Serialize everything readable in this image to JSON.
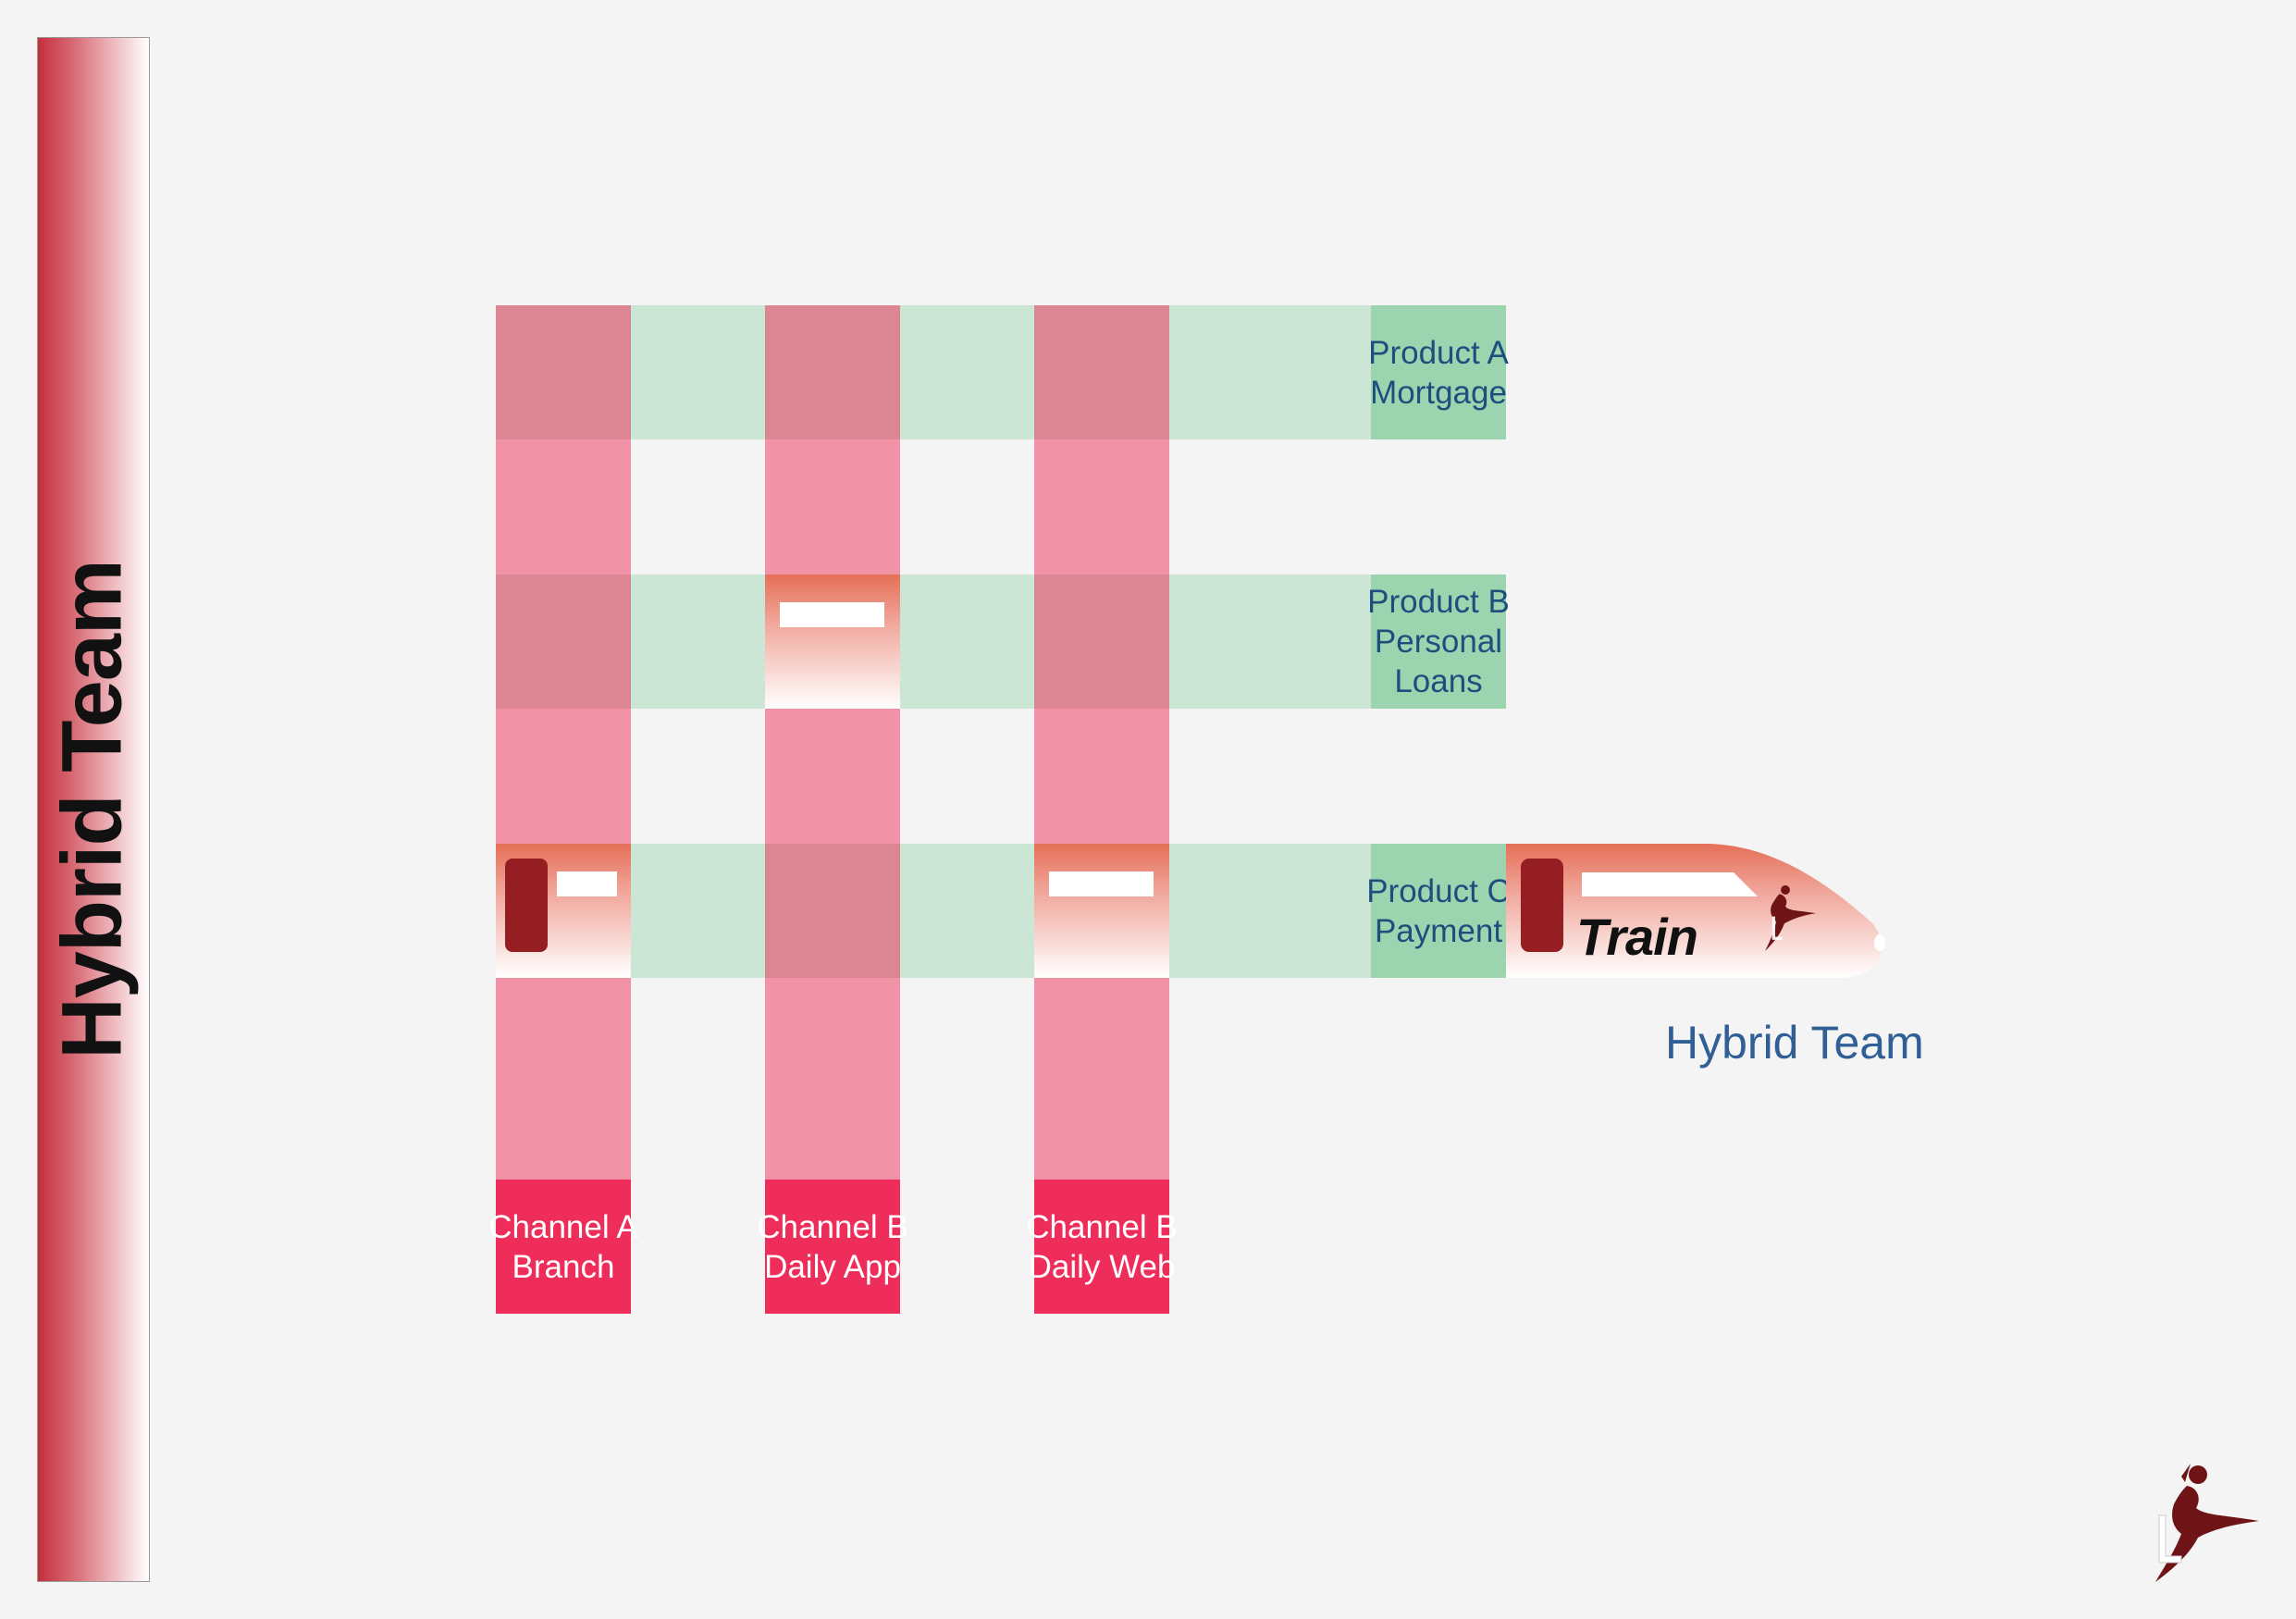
{
  "sidebar": {
    "title": "Hybrid Team"
  },
  "products": [
    {
      "line1": "Product A",
      "line2": "Mortgage",
      "line3": ""
    },
    {
      "line1": "Product B",
      "line2": "Personal",
      "line3": "Loans"
    },
    {
      "line1": "Product C",
      "line2": "Payment",
      "line3": ""
    }
  ],
  "channels": [
    {
      "line1": "Channel A",
      "line2": "Branch"
    },
    {
      "line1": "Channel B",
      "line2": "Daily App"
    },
    {
      "line1": "Channel B",
      "line2": "Daily Web"
    }
  ],
  "train": {
    "label": "Train"
  },
  "caption": "Hybrid Team",
  "colors": {
    "channel_lane": "#f292a6",
    "product_lane": "#cbe6d5",
    "channel_label": "#ef2d5a",
    "product_label": "#9dd4b0",
    "train_red": "#e56f57",
    "door": "#951e23",
    "text_blue": "#2f5f95"
  },
  "icons": [
    "dancer-logo-icon"
  ]
}
